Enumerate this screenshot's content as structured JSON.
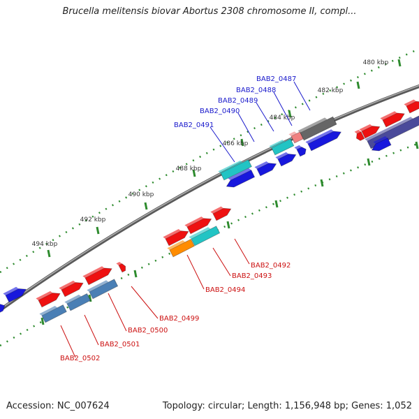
{
  "title": "Brucella melitensis biovar Abortus 2308 chromosome II, compl...",
  "footer": {
    "accession": "Accession: NC_007624",
    "topology": "Topology: circular; Length: 1,156,948 bp; Genes: 1,052"
  },
  "colors": {
    "backbone": "#808080",
    "tick": "#2e8b2e",
    "forward_gene": "#ee1111",
    "reverse_gene": "#1818dd",
    "steel_gene": "#4a7fb5",
    "cyan_gene": "#22c4c4",
    "grey_gene": "#666666",
    "pink_gene": "#f08080",
    "orange_gene": "#ff8c00",
    "slate_gene": "#4a4a9a",
    "top_label": "#1a1acc",
    "bottom_label": "#cc1111"
  },
  "ticks": [
    {
      "label": "480 kbp"
    },
    {
      "label": "482 kbp"
    },
    {
      "label": "484 kbp"
    },
    {
      "label": "486 kbp"
    },
    {
      "label": "488 kbp"
    },
    {
      "label": "490 kbp"
    },
    {
      "label": "492 kbp"
    },
    {
      "label": "494 kbp"
    }
  ],
  "top_labels": [
    {
      "text": "BAB2_0487"
    },
    {
      "text": "BAB2_0488"
    },
    {
      "text": "BAB2_0489"
    },
    {
      "text": "BAB2_0490"
    },
    {
      "text": "BAB2_0491"
    }
  ],
  "bottom_labels": [
    {
      "text": "BAB2_0492"
    },
    {
      "text": "BAB2_0493"
    },
    {
      "text": "BAB2_0494"
    },
    {
      "text": "BAB2_0499"
    },
    {
      "text": "BAB2_0500"
    },
    {
      "text": "BAB2_0501"
    },
    {
      "text": "BAB2_0502"
    }
  ]
}
